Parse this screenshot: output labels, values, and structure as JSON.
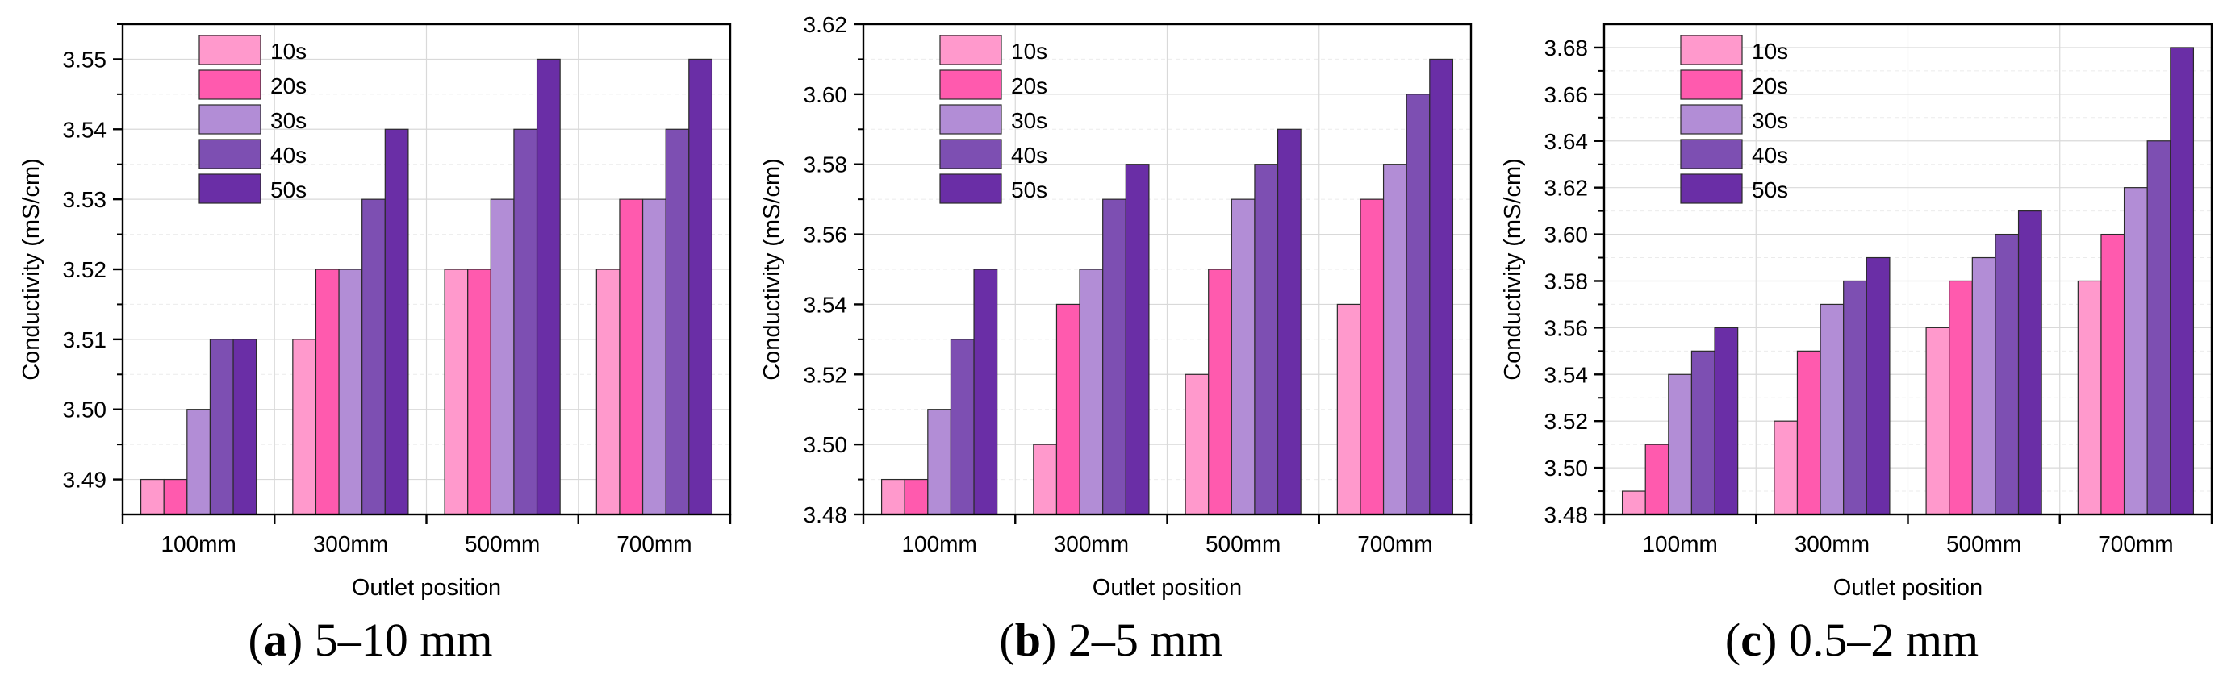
{
  "chart_data": [
    {
      "type": "bar",
      "panel_letter": "a",
      "caption_text": "5–10 mm",
      "xlabel": "Outlet position",
      "ylabel": "Conductivity (mS/cm)",
      "categories": [
        "100mm",
        "300mm",
        "500mm",
        "700mm"
      ],
      "ylim": [
        3.485,
        3.555
      ],
      "yticks": [
        3.49,
        3.5,
        3.51,
        3.52,
        3.53,
        3.54,
        3.55
      ],
      "ytick_labels": [
        "3.49",
        "3.50",
        "3.51",
        "3.52",
        "3.53",
        "3.54",
        "3.55"
      ],
      "grid": true,
      "legend_position": "top-left",
      "series": [
        {
          "name": "10s",
          "color": "#FF99CC",
          "values": [
            3.49,
            3.51,
            3.52,
            3.52
          ]
        },
        {
          "name": "20s",
          "color": "#FF5AAE",
          "values": [
            3.49,
            3.52,
            3.52,
            3.53
          ]
        },
        {
          "name": "30s",
          "color": "#B28DD6",
          "values": [
            3.5,
            3.52,
            3.53,
            3.53
          ]
        },
        {
          "name": "40s",
          "color": "#7D4FB2",
          "values": [
            3.51,
            3.53,
            3.54,
            3.54
          ]
        },
        {
          "name": "50s",
          "color": "#6A2EA6",
          "values": [
            3.51,
            3.54,
            3.55,
            3.55
          ]
        }
      ]
    },
    {
      "type": "bar",
      "panel_letter": "b",
      "caption_text": "2–5 mm",
      "xlabel": "Outlet position",
      "ylabel": "Conductivity (mS/cm)",
      "categories": [
        "100mm",
        "300mm",
        "500mm",
        "700mm"
      ],
      "ylim": [
        3.48,
        3.62
      ],
      "yticks": [
        3.48,
        3.5,
        3.52,
        3.54,
        3.56,
        3.58,
        3.6,
        3.62
      ],
      "ytick_labels": [
        "3.48",
        "3.50",
        "3.52",
        "3.54",
        "3.56",
        "3.58",
        "3.60",
        "3.62"
      ],
      "grid": true,
      "legend_position": "top-left",
      "series": [
        {
          "name": "10s",
          "color": "#FF99CC",
          "values": [
            3.49,
            3.5,
            3.52,
            3.54
          ]
        },
        {
          "name": "20s",
          "color": "#FF5AAE",
          "values": [
            3.49,
            3.54,
            3.55,
            3.57
          ]
        },
        {
          "name": "30s",
          "color": "#B28DD6",
          "values": [
            3.51,
            3.55,
            3.57,
            3.58
          ]
        },
        {
          "name": "40s",
          "color": "#7D4FB2",
          "values": [
            3.53,
            3.57,
            3.58,
            3.6
          ]
        },
        {
          "name": "50s",
          "color": "#6A2EA6",
          "values": [
            3.55,
            3.58,
            3.59,
            3.61
          ]
        }
      ]
    },
    {
      "type": "bar",
      "panel_letter": "c",
      "caption_text": "0.5–2 mm",
      "xlabel": "Outlet position",
      "ylabel": "Conductivity (mS/cm)",
      "categories": [
        "100mm",
        "300mm",
        "500mm",
        "700mm"
      ],
      "ylim": [
        3.48,
        3.69
      ],
      "yticks": [
        3.48,
        3.5,
        3.52,
        3.54,
        3.56,
        3.58,
        3.6,
        3.62,
        3.64,
        3.66,
        3.68
      ],
      "ytick_labels": [
        "3.48",
        "3.50",
        "3.52",
        "3.54",
        "3.56",
        "3.58",
        "3.60",
        "3.62",
        "3.64",
        "3.66",
        "3.68"
      ],
      "grid": true,
      "legend_position": "top-left",
      "series": [
        {
          "name": "10s",
          "color": "#FF99CC",
          "values": [
            3.49,
            3.52,
            3.56,
            3.58
          ]
        },
        {
          "name": "20s",
          "color": "#FF5AAE",
          "values": [
            3.51,
            3.55,
            3.58,
            3.6
          ]
        },
        {
          "name": "30s",
          "color": "#B28DD6",
          "values": [
            3.54,
            3.57,
            3.59,
            3.62
          ]
        },
        {
          "name": "40s",
          "color": "#7D4FB2",
          "values": [
            3.55,
            3.58,
            3.6,
            3.64
          ]
        },
        {
          "name": "50s",
          "color": "#6A2EA6",
          "values": [
            3.56,
            3.59,
            3.61,
            3.68
          ]
        }
      ]
    }
  ]
}
